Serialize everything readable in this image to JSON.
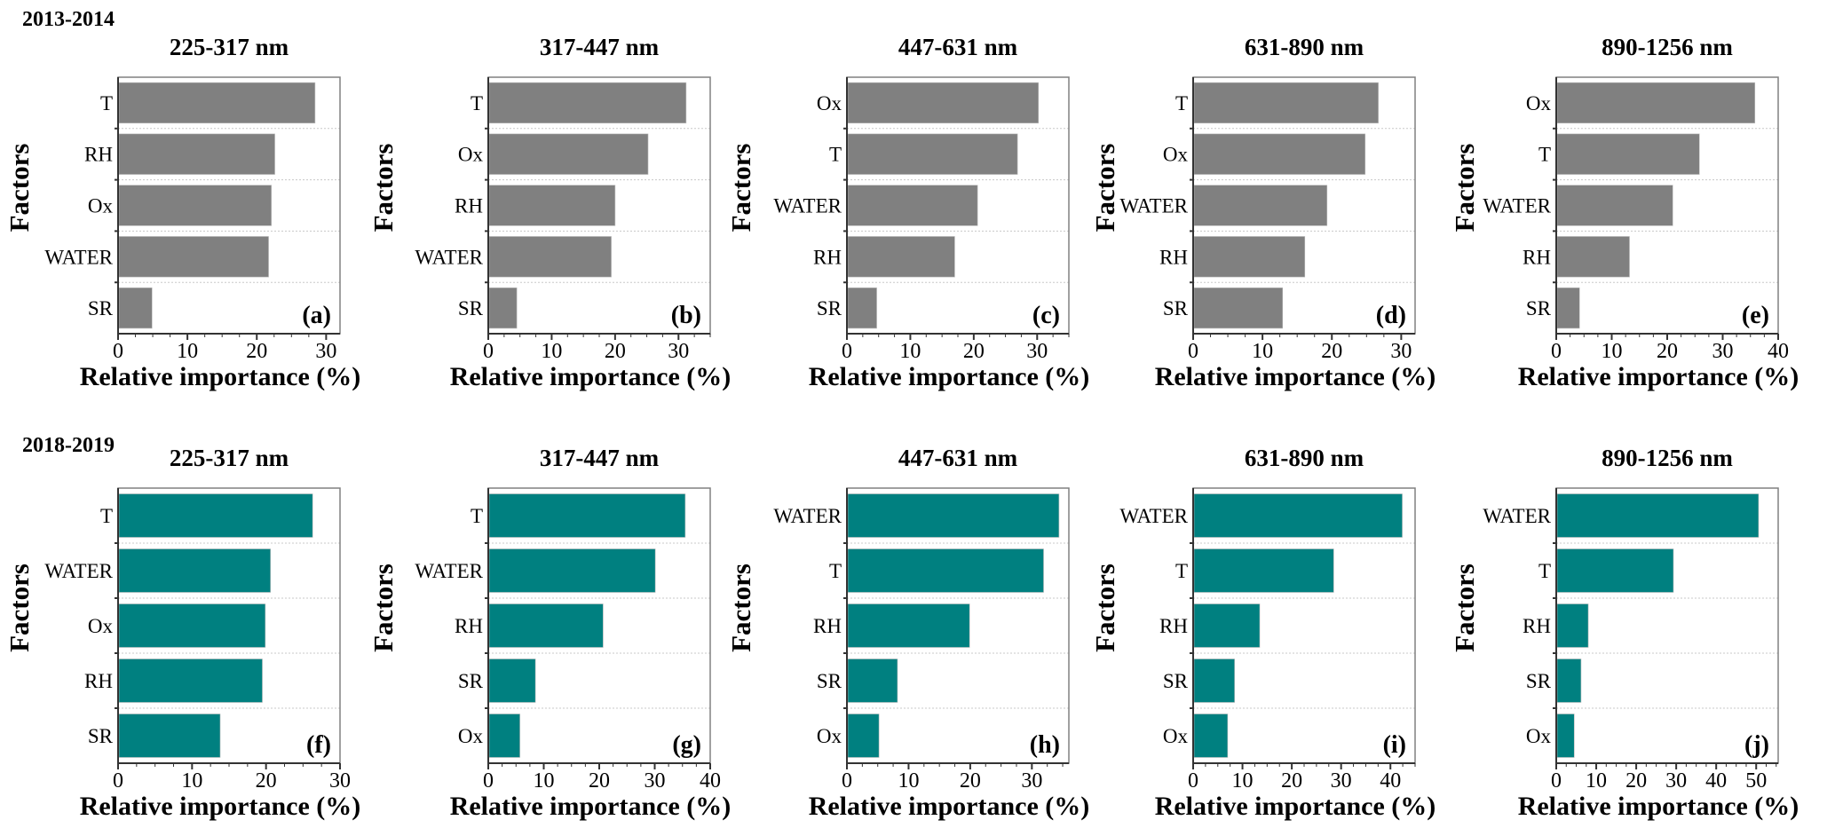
{
  "row_labels": [
    "2013-2014",
    "2018-2019"
  ],
  "colors": {
    "2013-2014": "#808080",
    "2018-2019": "#008080"
  },
  "chart_data": [
    {
      "type": "bar",
      "orientation": "horizontal",
      "panel": "(a)",
      "title": "225-317 nm",
      "xlabel": "Relative importance (%)",
      "ylabel": "Factors",
      "categories": [
        "T",
        "RH",
        "Ox",
        "WATER",
        "SR"
      ],
      "values": [
        28.4,
        22.6,
        22.1,
        21.7,
        4.9
      ],
      "xlim": [
        0,
        32
      ],
      "xticks": [
        "0",
        "10",
        "20",
        "30"
      ],
      "grid": "horizontal dotted",
      "color": "#808080"
    },
    {
      "type": "bar",
      "orientation": "horizontal",
      "panel": "(b)",
      "title": "317-447 nm",
      "xlabel": "Relative importance (%)",
      "ylabel": "Factors",
      "categories": [
        "T",
        "Ox",
        "RH",
        "WATER",
        "SR"
      ],
      "values": [
        31.2,
        25.2,
        20.0,
        19.4,
        4.5
      ],
      "xlim": [
        0,
        35
      ],
      "xticks": [
        "0",
        "10",
        "20",
        "30"
      ],
      "grid": "horizontal dotted",
      "color": "#808080"
    },
    {
      "type": "bar",
      "orientation": "horizontal",
      "panel": "(c)",
      "title": "447-631 nm",
      "xlabel": "Relative importance (%)",
      "ylabel": "Factors",
      "categories": [
        "Ox",
        "T",
        "WATER",
        "RH",
        "SR"
      ],
      "values": [
        30.2,
        26.9,
        20.6,
        17.0,
        4.7
      ],
      "xlim": [
        0,
        35
      ],
      "xticks": [
        "0",
        "10",
        "20",
        "30"
      ],
      "grid": "horizontal dotted",
      "color": "#808080"
    },
    {
      "type": "bar",
      "orientation": "horizontal",
      "panel": "(d)",
      "title": "631-890 nm",
      "xlabel": "Relative importance (%)",
      "ylabel": "Factors",
      "categories": [
        "T",
        "Ox",
        "WATER",
        "RH",
        "SR"
      ],
      "values": [
        26.7,
        24.8,
        19.3,
        16.1,
        12.9
      ],
      "xlim": [
        0,
        32
      ],
      "xticks": [
        "0",
        "10",
        "20",
        "30"
      ],
      "grid": "horizontal dotted",
      "color": "#808080"
    },
    {
      "type": "bar",
      "orientation": "horizontal",
      "panel": "(e)",
      "title": "890-1256 nm",
      "xlabel": "Relative importance (%)",
      "ylabel": "Factors",
      "categories": [
        "Ox",
        "T",
        "WATER",
        "RH",
        "SR"
      ],
      "values": [
        35.8,
        25.8,
        21.0,
        13.2,
        4.2
      ],
      "xlim": [
        0,
        40
      ],
      "xticks": [
        "0",
        "10",
        "20",
        "30",
        "40"
      ],
      "grid": "horizontal dotted",
      "color": "#808080"
    },
    {
      "type": "bar",
      "orientation": "horizontal",
      "panel": "(f)",
      "title": "225-317 nm",
      "xlabel": "Relative importance (%)",
      "ylabel": "Factors",
      "categories": [
        "T",
        "WATER",
        "Ox",
        "RH",
        "SR"
      ],
      "values": [
        26.3,
        20.6,
        19.9,
        19.5,
        13.8
      ],
      "xlim": [
        0,
        30
      ],
      "xticks": [
        "0",
        "10",
        "20",
        "30"
      ],
      "grid": "horizontal dotted",
      "color": "#008080"
    },
    {
      "type": "bar",
      "orientation": "horizontal",
      "panel": "(g)",
      "title": "317-447 nm",
      "xlabel": "Relative importance (%)",
      "ylabel": "Factors",
      "categories": [
        "T",
        "WATER",
        "RH",
        "SR",
        "Ox"
      ],
      "values": [
        35.5,
        30.1,
        20.7,
        8.5,
        5.7
      ],
      "xlim": [
        0,
        40
      ],
      "xticks": [
        "0",
        "10",
        "20",
        "30",
        "40"
      ],
      "grid": "horizontal dotted",
      "color": "#008080"
    },
    {
      "type": "bar",
      "orientation": "horizontal",
      "panel": "(h)",
      "title": "447-631 nm",
      "xlabel": "Relative importance (%)",
      "ylabel": "Factors",
      "categories": [
        "WATER",
        "T",
        "RH",
        "SR",
        "Ox"
      ],
      "values": [
        34.4,
        31.9,
        19.9,
        8.2,
        5.2
      ],
      "xlim": [
        0,
        36
      ],
      "xticks": [
        "0",
        "10",
        "20",
        "30"
      ],
      "grid": "horizontal dotted",
      "color": "#008080"
    },
    {
      "type": "bar",
      "orientation": "horizontal",
      "panel": "(i)",
      "title": "631-890 nm",
      "xlabel": "Relative importance (%)",
      "ylabel": "Factors",
      "categories": [
        "WATER",
        "T",
        "RH",
        "SR",
        "Ox"
      ],
      "values": [
        42.4,
        28.5,
        13.5,
        8.4,
        7.0
      ],
      "xlim": [
        0,
        45
      ],
      "xticks": [
        "0",
        "10",
        "20",
        "30",
        "40"
      ],
      "grid": "horizontal dotted",
      "color": "#008080"
    },
    {
      "type": "bar",
      "orientation": "horizontal",
      "panel": "(j)",
      "title": "890-1256 nm",
      "xlabel": "Relative importance (%)",
      "ylabel": "Factors",
      "categories": [
        "WATER",
        "T",
        "RH",
        "SR",
        "Ox"
      ],
      "values": [
        50.6,
        29.3,
        8.0,
        6.2,
        4.5
      ],
      "xlim": [
        0,
        55.5
      ],
      "xticks": [
        "0",
        "10",
        "20",
        "30",
        "40",
        "50"
      ],
      "grid": "horizontal dotted",
      "color": "#008080"
    }
  ]
}
